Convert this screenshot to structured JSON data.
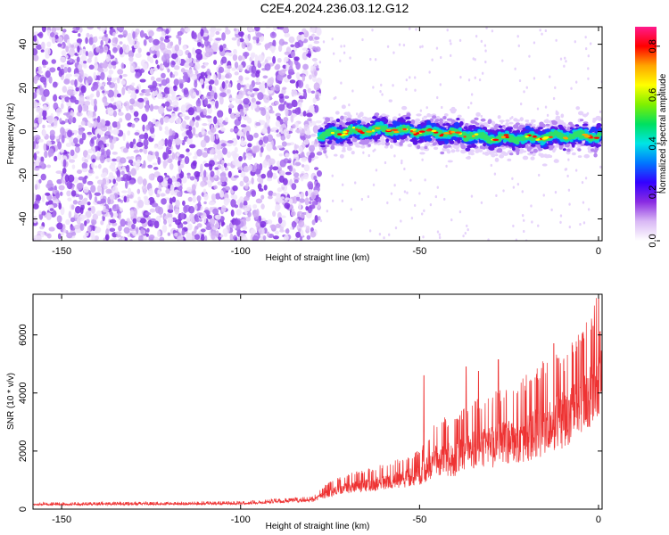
{
  "title": "C2E4.2024.236.03.12.G12",
  "chart_data": [
    {
      "type": "heatmap",
      "xlabel": "Height of straight line (km)",
      "ylabel": "Frequency (Hz)",
      "xlim": [
        -158,
        1
      ],
      "ylim": [
        -50,
        48
      ],
      "xticks": [
        -150,
        -100,
        -50,
        0
      ],
      "yticks": [
        -40,
        -20,
        0,
        20,
        40
      ],
      "noise_region_x": [
        -158,
        -78
      ],
      "signal_start_x": -78,
      "signal_ridge": {
        "x": [
          -78,
          -70,
          -60,
          -50,
          -40,
          -30,
          -20,
          -10,
          0
        ],
        "freq": [
          -2,
          0,
          1,
          0,
          -1,
          -3,
          -3,
          -2,
          -2
        ]
      },
      "colorbar": {
        "label": "Normalized spectral amplitude",
        "range": [
          0,
          0.88
        ],
        "ticks": [
          "0.0",
          "0.2",
          "0.4",
          "0.6",
          "0.8"
        ]
      },
      "colormap": [
        "#ffffff",
        "#d9b8f5",
        "#8a2be2",
        "#3300ff",
        "#0077ff",
        "#00e5e5",
        "#00e060",
        "#7ff000",
        "#ffff00",
        "#ffa500",
        "#ff0000",
        "#ff1a8c"
      ]
    },
    {
      "type": "line",
      "xlabel": "Height of straight line (km)",
      "ylabel": "SNR (10 * v/v)",
      "xlim": [
        -158,
        1
      ],
      "ylim": [
        0,
        7400
      ],
      "xticks": [
        -150,
        -100,
        -50,
        0
      ],
      "yticks": [
        0,
        2000,
        4000,
        6000
      ],
      "line_color": "#ee3333",
      "envelope": {
        "x": [
          -158,
          -100,
          -80,
          -75,
          -70,
          -60,
          -50,
          -45,
          -40,
          -35,
          -30,
          -25,
          -20,
          -15,
          -10,
          -5,
          -2,
          0,
          1
        ],
        "level": [
          150,
          180,
          300,
          550,
          700,
          850,
          1100,
          1600,
          1600,
          1900,
          2000,
          2200,
          2300,
          2600,
          2900,
          3300,
          3800,
          4200,
          3500
        ],
        "spread": [
          70,
          80,
          120,
          350,
          450,
          600,
          800,
          1300,
          1400,
          1600,
          1700,
          1800,
          2000,
          2200,
          2300,
          2400,
          2600,
          2800,
          1600
        ]
      },
      "peaks": [
        {
          "x": -48.8,
          "y": 4600
        },
        {
          "x": -37,
          "y": 4900
        },
        {
          "x": -33.5,
          "y": 4750
        },
        {
          "x": -28,
          "y": 5150
        },
        {
          "x": -12.5,
          "y": 5700
        },
        {
          "x": -9.5,
          "y": 4750
        },
        {
          "x": -4.5,
          "y": 6050
        },
        {
          "x": -1.5,
          "y": 6300
        },
        {
          "x": 0,
          "y": 7300
        }
      ]
    }
  ]
}
